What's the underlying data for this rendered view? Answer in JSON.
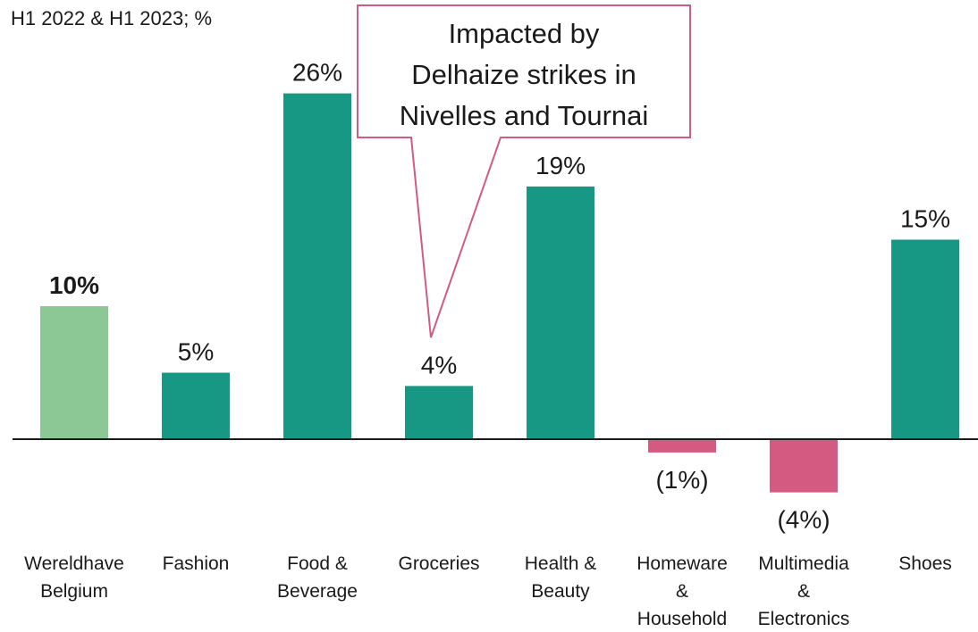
{
  "subtitle": "H1 2022 & H1 2023; %",
  "callout": {
    "lines": [
      "Impacted by",
      "Delhaize strikes in",
      "Nivelles and Tournai"
    ]
  },
  "colors": {
    "benchmark": "#8cc896",
    "positive": "#179885",
    "negative": "#d55a82",
    "callout_border": "#d55a82"
  },
  "chart_data": {
    "type": "bar",
    "title": "",
    "subtitle": "H1 2022 & H1 2023; %",
    "xlabel": "",
    "ylabel": "",
    "categories": [
      [
        "Wereldhave",
        "Belgium"
      ],
      [
        "Fashion"
      ],
      [
        "Food &",
        "Beverage"
      ],
      [
        "Groceries"
      ],
      [
        "Health &",
        "Beauty"
      ],
      [
        "Homeware",
        "&",
        "Household"
      ],
      [
        "Multimedia",
        "&",
        "Electronics"
      ],
      [
        "Shoes"
      ]
    ],
    "values": [
      10,
      5,
      26,
      4,
      19,
      -1,
      -4,
      15
    ],
    "value_labels": [
      "10%",
      "5%",
      "26%",
      "4%",
      "19%",
      "(1%)",
      "(4%)",
      "15%"
    ],
    "value_labels_bold": [
      true,
      false,
      false,
      false,
      false,
      false,
      false,
      false
    ],
    "bar_color_keys": [
      "benchmark",
      "positive",
      "positive",
      "positive",
      "positive",
      "negative",
      "negative",
      "positive"
    ],
    "ylim": [
      -4,
      26
    ],
    "grid": false,
    "legend": "none"
  }
}
